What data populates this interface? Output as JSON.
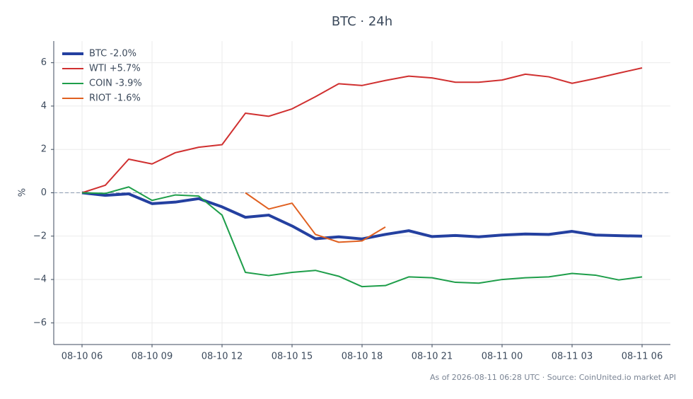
{
  "chart_data": {
    "type": "line",
    "title": "BTC · 24h",
    "ylabel": "%",
    "footnote": "As of 2026-08-11 06:28 UTC · Source: CoinUnited.io market API",
    "x": [
      "08-10 06",
      "08-10 07",
      "08-10 08",
      "08-10 09",
      "08-10 10",
      "08-10 11",
      "08-10 12",
      "08-10 13",
      "08-10 14",
      "08-10 15",
      "08-10 16",
      "08-10 17",
      "08-10 18",
      "08-10 19",
      "08-10 20",
      "08-10 21",
      "08-10 22",
      "08-10 23",
      "08-11 00",
      "08-11 01",
      "08-11 02",
      "08-11 03",
      "08-11 04",
      "08-11 05",
      "08-11 06"
    ],
    "xticks": [
      "08-10 06",
      "08-10 09",
      "08-10 12",
      "08-10 15",
      "08-10 18",
      "08-10 21",
      "08-11 00",
      "08-11 03",
      "08-11 06"
    ],
    "ylim": [
      -7,
      7
    ],
    "yticks": [
      {
        "value": -6,
        "label": "−6"
      },
      {
        "value": -4,
        "label": "−4"
      },
      {
        "value": -2,
        "label": "−2"
      },
      0,
      2,
      4,
      6
    ],
    "grid": true,
    "reference_line": 0,
    "legend": "upper left",
    "series": [
      {
        "name": "BTC -2.0%",
        "color": "#2440a0",
        "width": 4,
        "values": [
          0,
          -0.12,
          -0.05,
          -0.5,
          -0.43,
          -0.27,
          -0.65,
          -1.13,
          -1.03,
          -1.53,
          -2.12,
          -2.03,
          -2.13,
          -1.92,
          -1.75,
          -2.02,
          -1.97,
          -2.03,
          -1.95,
          -1.9,
          -1.92,
          -1.78,
          -1.95,
          -1.98,
          -2.0
        ]
      },
      {
        "name": "WTI +5.7%",
        "color": "#d03030",
        "width": 2,
        "values": [
          0,
          0.35,
          1.55,
          1.33,
          1.85,
          2.1,
          2.22,
          3.67,
          3.53,
          3.87,
          4.43,
          5.03,
          4.95,
          5.18,
          5.38,
          5.3,
          5.1,
          5.1,
          5.2,
          5.47,
          5.35,
          5.05,
          5.27,
          5.52,
          5.76
        ]
      },
      {
        "name": "COIN -3.9%",
        "color": "#1e9e4a",
        "width": 2,
        "values": [
          0,
          -0.03,
          0.27,
          -0.35,
          -0.1,
          -0.15,
          -1.03,
          -3.67,
          -3.82,
          -3.67,
          -3.58,
          -3.85,
          -4.33,
          -4.28,
          -3.88,
          -3.92,
          -4.13,
          -4.17,
          -4.0,
          -3.92,
          -3.88,
          -3.72,
          -3.8,
          -4.02,
          -3.88
        ]
      },
      {
        "name": "RIOT -1.6%",
        "color": "#e06020",
        "width": 2,
        "values": [
          null,
          null,
          null,
          null,
          null,
          null,
          null,
          0,
          -0.75,
          -0.48,
          -1.92,
          -2.28,
          -2.22,
          -1.58,
          null,
          null,
          null,
          null,
          null,
          null,
          null,
          null,
          null,
          null,
          null
        ]
      }
    ]
  }
}
